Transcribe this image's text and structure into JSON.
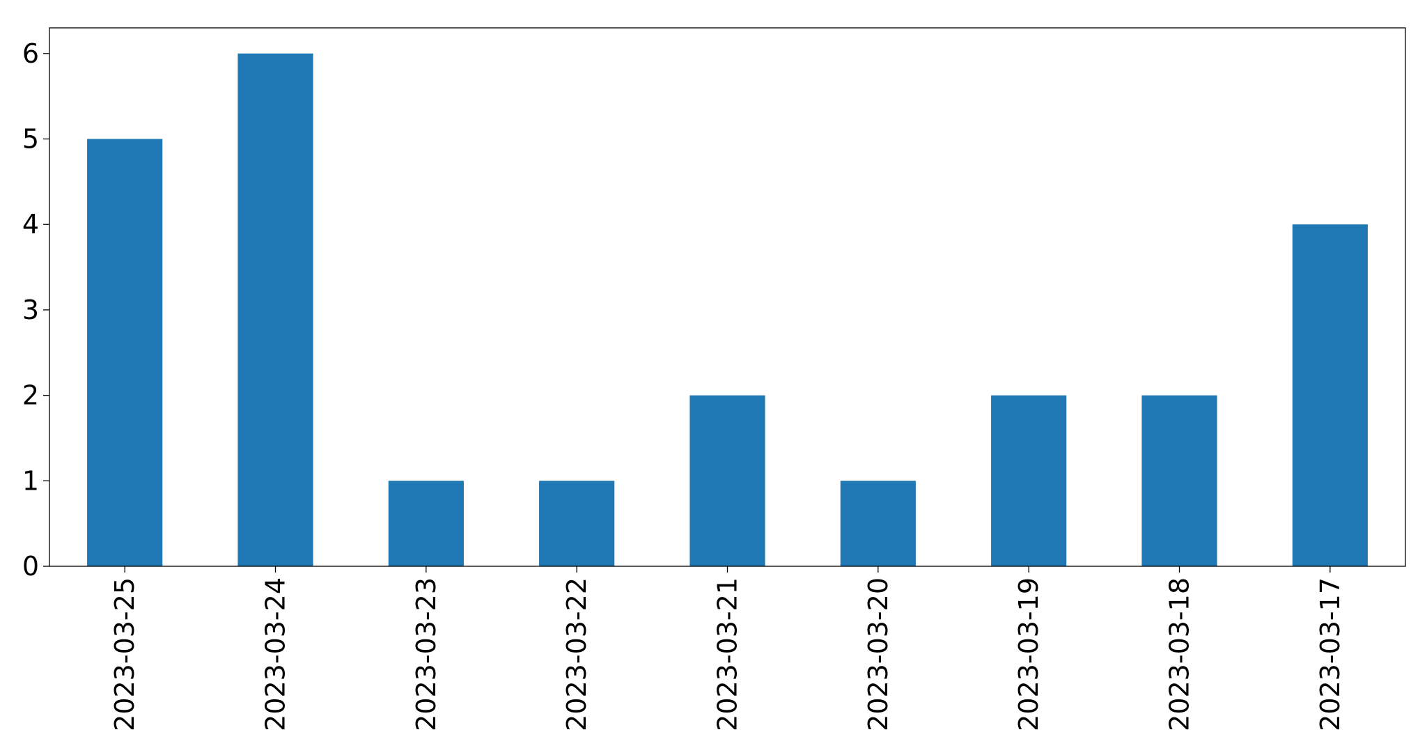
{
  "chart_data": {
    "type": "bar",
    "title": "",
    "xlabel": "",
    "ylabel": "",
    "categories": [
      "2023-03-25",
      "2023-03-24",
      "2023-03-23",
      "2023-03-22",
      "2023-03-21",
      "2023-03-20",
      "2023-03-19",
      "2023-03-18",
      "2023-03-17"
    ],
    "values": [
      5,
      6,
      1,
      1,
      2,
      1,
      2,
      2,
      4
    ],
    "ylim": [
      0,
      6.3
    ],
    "yticks": [
      0,
      1,
      2,
      3,
      4,
      5,
      6
    ],
    "x_tick_rotation": "vertical",
    "grid": false,
    "legend": "none",
    "bar_color": "#1f77b4"
  }
}
